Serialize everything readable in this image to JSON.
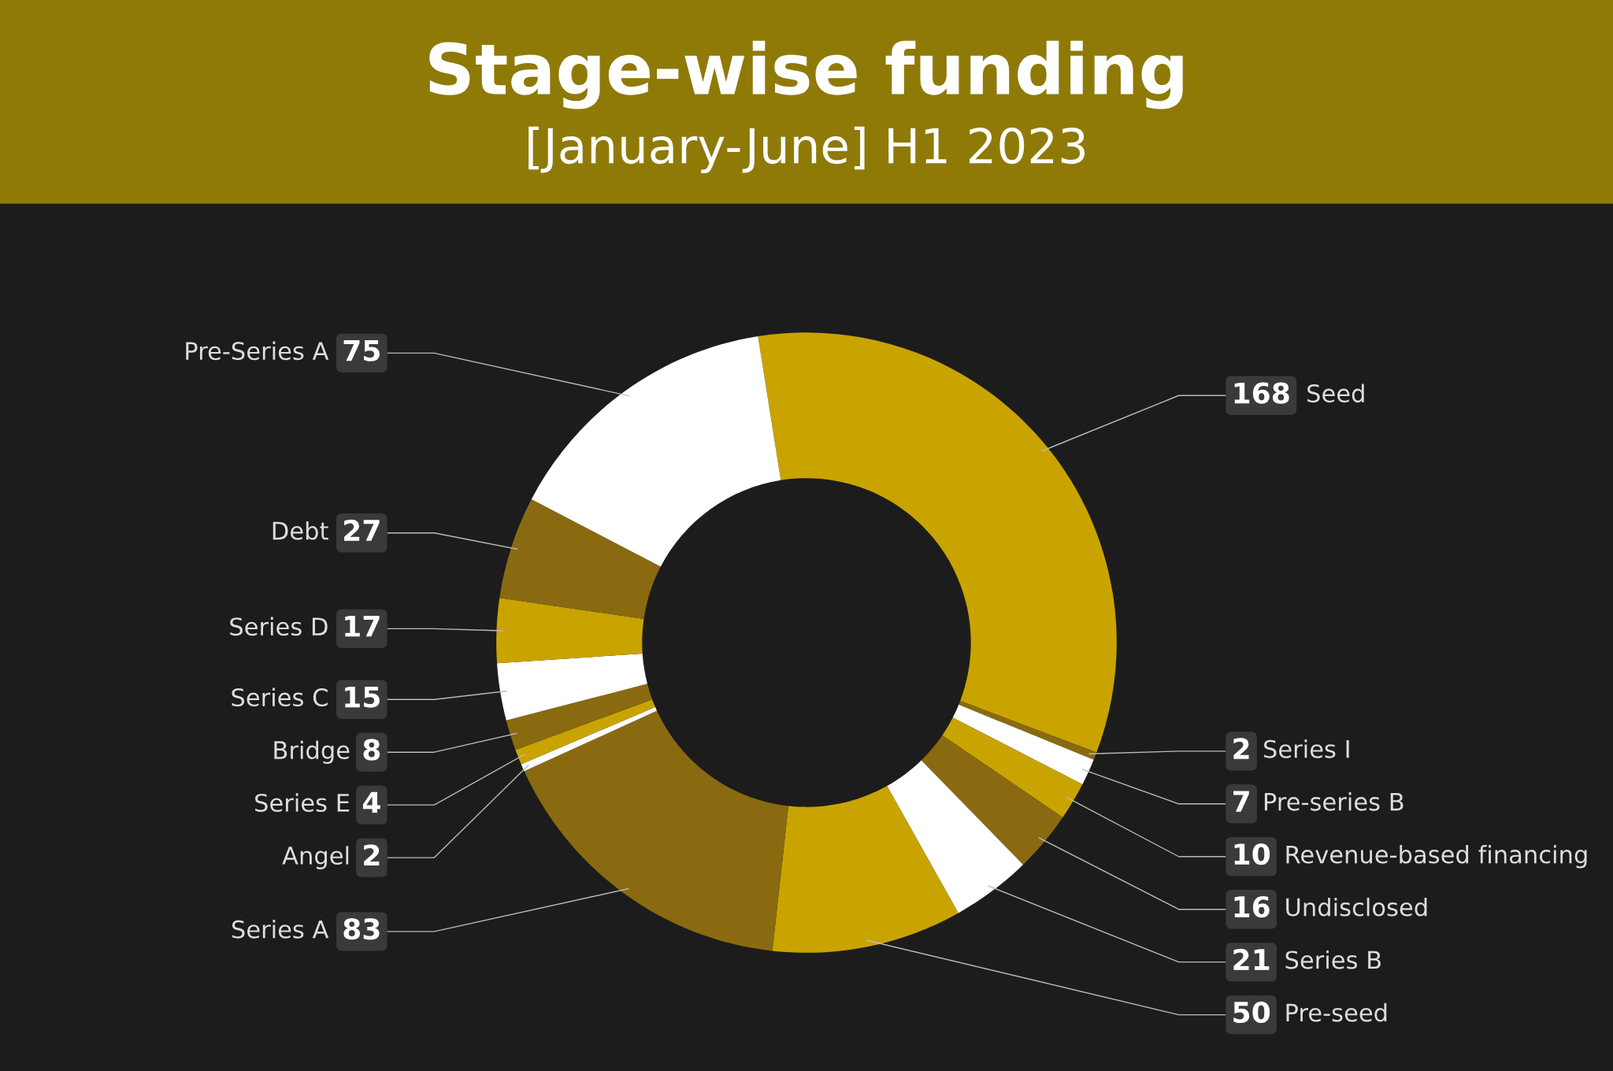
{
  "chart_data": {
    "type": "donut",
    "title": "Stage-wise funding",
    "subtitle": "[January-June] H1 2023",
    "categories": [
      "Seed",
      "Series I",
      "Pre-series B",
      "Revenue-based financing",
      "Undisclosed",
      "Series B",
      "Pre-seed",
      "Series A",
      "Angel",
      "Series E",
      "Bridge",
      "Series C",
      "Series D",
      "Debt",
      "Pre-Series A"
    ],
    "values": [
      168,
      2,
      7,
      10,
      16,
      21,
      50,
      83,
      2,
      4,
      8,
      15,
      17,
      27,
      75
    ],
    "colors": [
      "#c9a400",
      "#8a6a10",
      "#ffffff",
      "#c9a400",
      "#8a6a10",
      "#ffffff",
      "#c9a400",
      "#8a6a10",
      "#ffffff",
      "#c9a400",
      "#8a6a10",
      "#ffffff",
      "#c9a400",
      "#8a6a10",
      "#ffffff"
    ],
    "data_labels": true
  }
}
